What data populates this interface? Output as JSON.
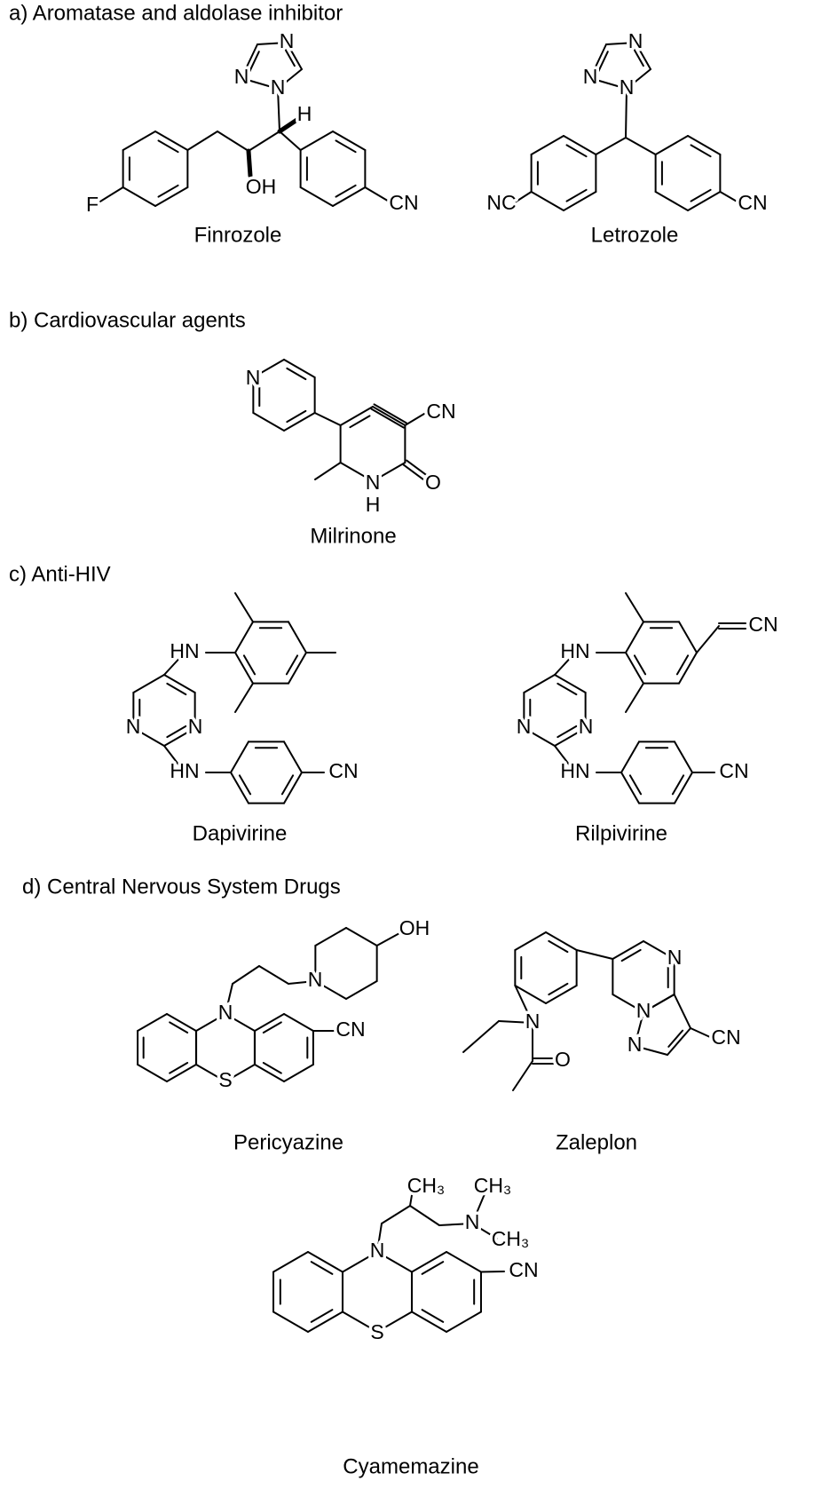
{
  "sections": [
    {
      "heading": "a) Aromatase and aldolase inhibitor",
      "molecules": [
        {
          "name": "Finrozole",
          "atoms": [
            "N",
            "N",
            "N",
            "H",
            "F",
            "OH",
            "CN"
          ]
        },
        {
          "name": "Letrozole",
          "atoms": [
            "N",
            "N",
            "N",
            "NC",
            "CN"
          ]
        }
      ]
    },
    {
      "heading": "b) Cardiovascular agents",
      "molecules": [
        {
          "name": "Milrinone",
          "atoms": [
            "N",
            "CN",
            "N",
            "H",
            "O"
          ]
        }
      ]
    },
    {
      "heading": "c) Anti-HIV",
      "molecules": [
        {
          "name": "Dapivirine",
          "atoms": [
            "HN",
            "N",
            "N",
            "HN",
            "CN"
          ]
        },
        {
          "name": "Rilpivirine",
          "atoms": [
            "HN",
            "CN",
            "N",
            "N",
            "HN",
            "CN"
          ]
        }
      ]
    },
    {
      "heading": "d) Central Nervous System Drugs",
      "molecules": [
        {
          "name": "Pericyazine",
          "atoms": [
            "OH",
            "N",
            "N",
            "CN",
            "S"
          ]
        },
        {
          "name": "Zaleplon",
          "atoms": [
            "N",
            "N",
            "N",
            "N",
            "O",
            "CN"
          ]
        },
        {
          "name": "Cyamemazine",
          "atoms": [
            "CH₃",
            "CH₃",
            "N",
            "CH₃",
            "N",
            "CN",
            "S"
          ]
        }
      ]
    }
  ]
}
